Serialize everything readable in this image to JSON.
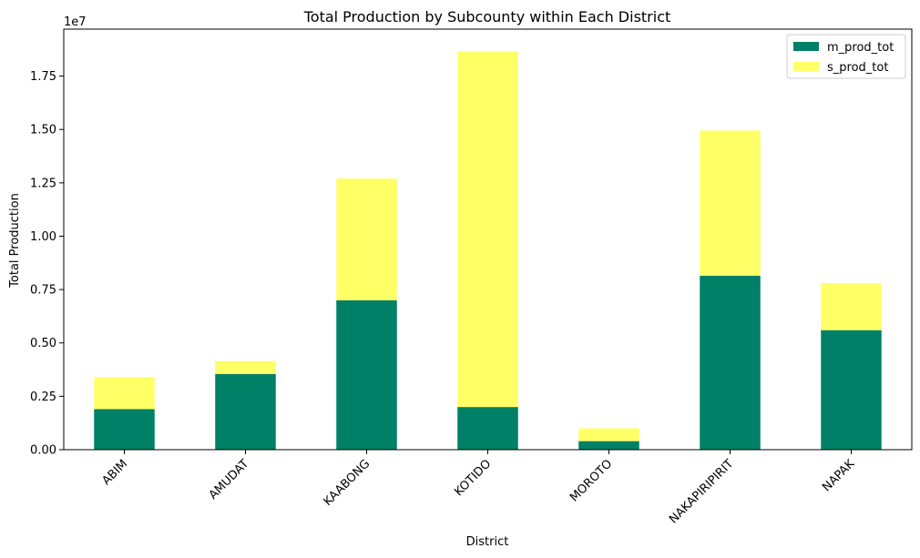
{
  "chart_data": {
    "type": "bar",
    "stacked": true,
    "title": "Total Production by Subcounty within Each District",
    "xlabel": "District",
    "ylabel": "Total Production",
    "y_scale_label": "1e7",
    "ylim": [
      0,
      1.97
    ],
    "yticks": [
      0.0,
      0.25,
      0.5,
      0.75,
      1.0,
      1.25,
      1.5,
      1.75
    ],
    "ytick_labels": [
      "0.00",
      "0.25",
      "0.50",
      "0.75",
      "1.00",
      "1.25",
      "1.50",
      "1.75"
    ],
    "categories": [
      "ABIM",
      "AMUDAT",
      "KAABONG",
      "KOTIDO",
      "MOROTO",
      "NAKAPIRIPIRIT",
      "NAPAK"
    ],
    "series": [
      {
        "name": "m_prod_tot",
        "color": "#008066",
        "values": [
          0.19,
          0.355,
          0.7,
          0.2,
          0.04,
          0.815,
          0.56
        ]
      },
      {
        "name": "s_prod_tot",
        "color": "#ffff66",
        "values": [
          0.15,
          0.06,
          0.57,
          1.665,
          0.06,
          0.68,
          0.22
        ]
      }
    ],
    "legend_position": "top-right",
    "grid": false
  }
}
